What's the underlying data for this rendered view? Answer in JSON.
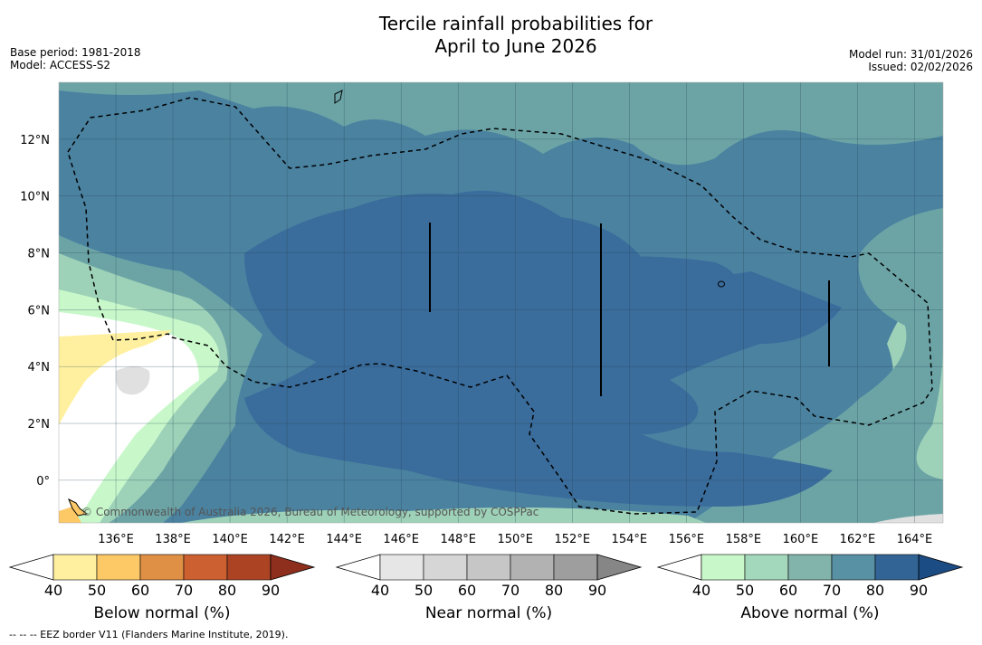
{
  "title_line1": "Tercile rainfall probabilities for",
  "title_line2": "April to June 2026",
  "base_period": "Base period: 1981-2018",
  "model": "Model: ACCESS-S2",
  "model_run": "Model run: 31/01/2026",
  "issued": "Issued: 02/02/2026",
  "copyright": "© Commonwealth of Australia 2026, Bureau of Meteorology, supported by COSPPac",
  "footer": "--  --  -- EEZ border V11 (Flanders Marine Institute, 2019).",
  "map": {
    "lon_labels": [
      "136°E",
      "138°E",
      "140°E",
      "142°E",
      "144°E",
      "146°E",
      "148°E",
      "150°E",
      "152°E",
      "154°E",
      "156°E",
      "158°E",
      "160°E",
      "162°E",
      "164°E"
    ],
    "lon_values": [
      136,
      138,
      140,
      142,
      144,
      146,
      148,
      150,
      152,
      154,
      156,
      158,
      160,
      162,
      164
    ],
    "lat_labels": [
      "12°N",
      "10°N",
      "8°N",
      "6°N",
      "4°N",
      "2°N",
      "0°"
    ],
    "lat_values": [
      12,
      10,
      8,
      6,
      4,
      2,
      0
    ],
    "lon_range": [
      134,
      165
    ],
    "lat_range": [
      -1.5,
      14
    ]
  },
  "colorbars": [
    {
      "name": "below",
      "label": "Below normal (%)",
      "ticks": [
        "40",
        "50",
        "60",
        "70",
        "80",
        "90"
      ],
      "colors": [
        "#fff0a0",
        "#fdc866",
        "#e09044",
        "#cc6030",
        "#ac4424"
      ],
      "low": "#ffffff",
      "high": "#8e2e1c"
    },
    {
      "name": "near",
      "label": "Near normal (%)",
      "ticks": [
        "40",
        "50",
        "60",
        "70",
        "80",
        "90"
      ],
      "colors": [
        "#e6e6e6",
        "#d6d6d6",
        "#c6c6c6",
        "#b2b2b2",
        "#9e9e9e"
      ],
      "low": "#ffffff",
      "high": "#868686"
    },
    {
      "name": "above",
      "label": "Above normal (%)",
      "ticks": [
        "40",
        "50",
        "60",
        "70",
        "80",
        "90"
      ],
      "colors": [
        "#c8f8ca",
        "#a4d8bc",
        "#82b4ac",
        "#5890a4",
        "#336496"
      ],
      "low": "#ffffff",
      "high": "#1c4c84"
    }
  ]
}
